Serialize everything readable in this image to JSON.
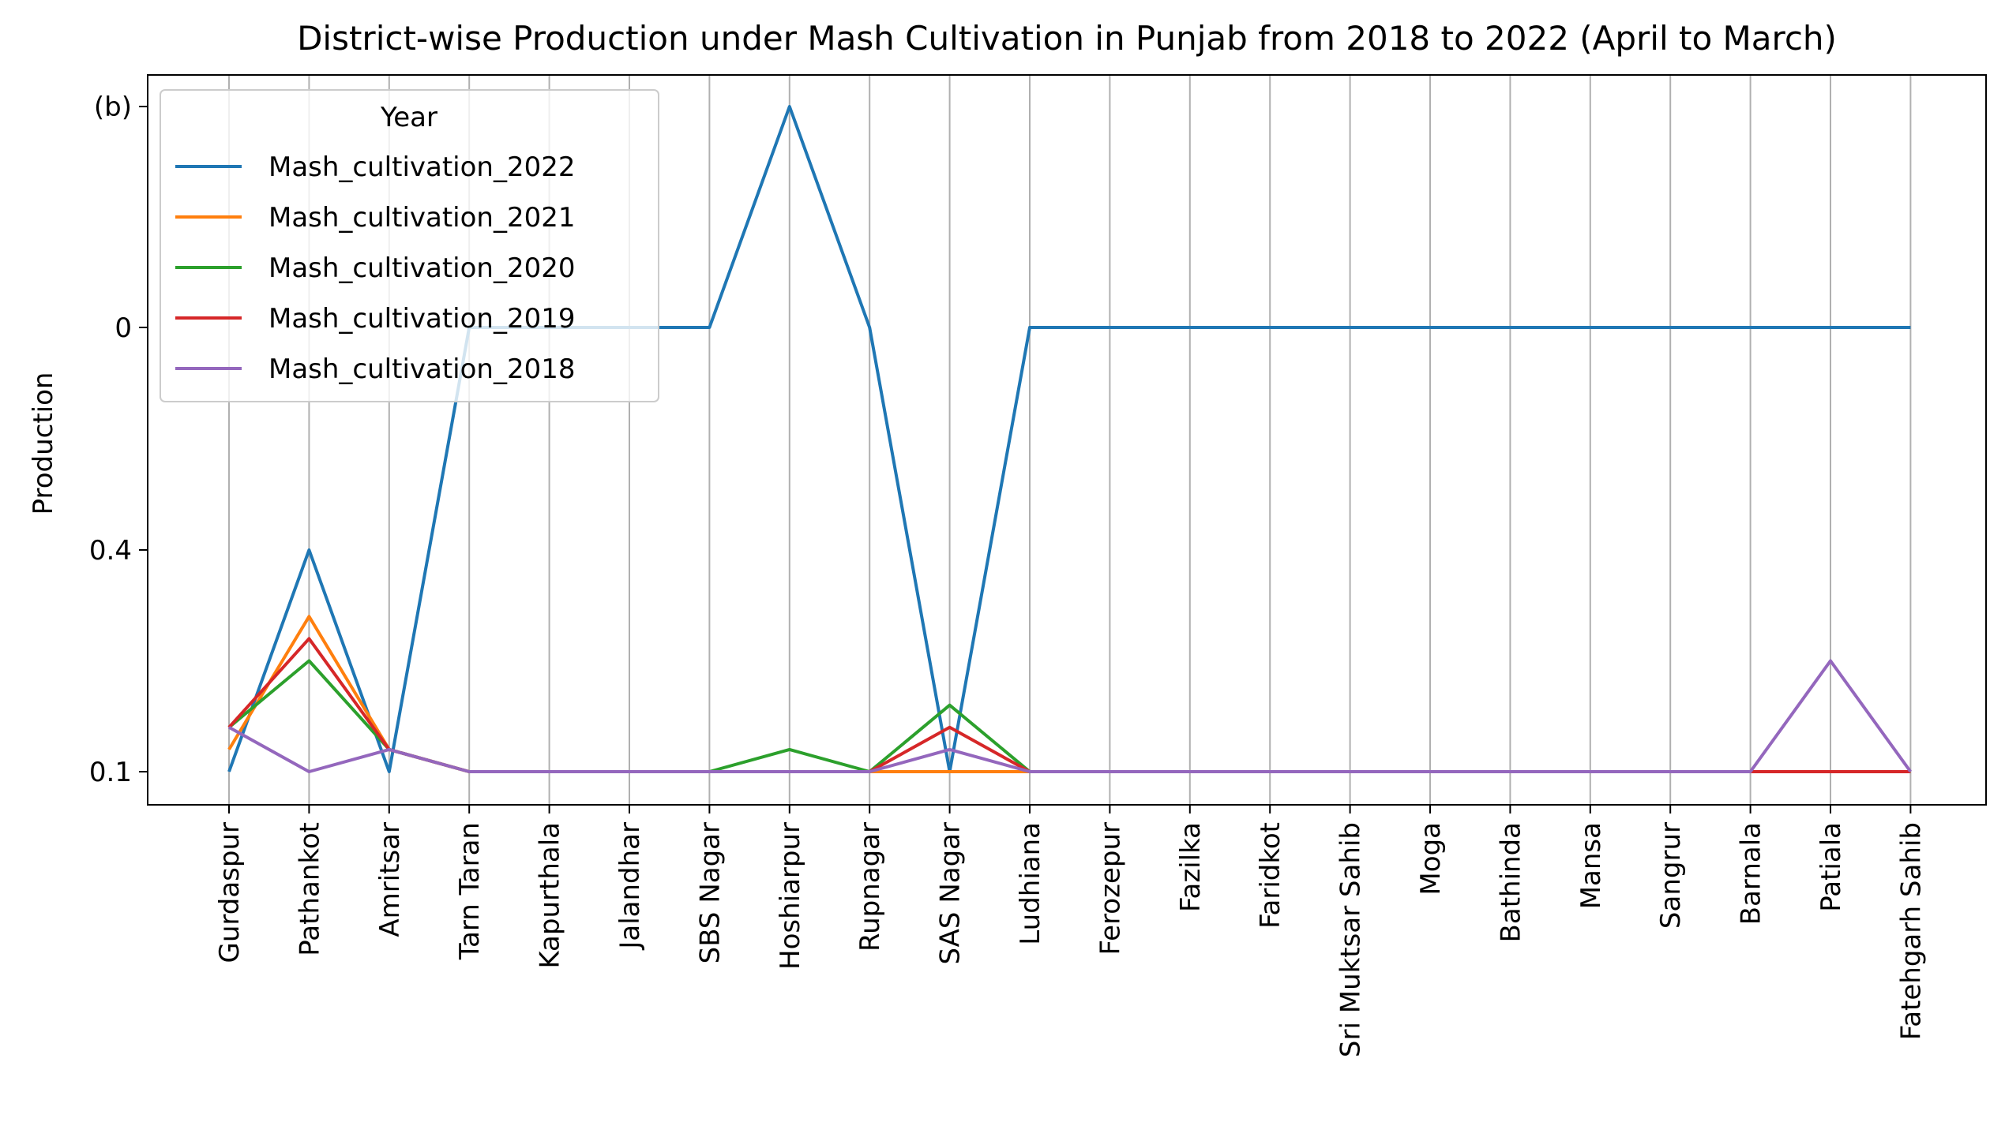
{
  "chart_data": {
    "type": "line",
    "title": "District-wise Production under Mash Cultivation in Punjab from 2018 to 2022 (April to March)",
    "xlabel": "",
    "ylabel": "Production",
    "categories": [
      "Gurdaspur",
      "Pathankot",
      "Amritsar",
      "Tarn Taran",
      "Kapurthala",
      "Jalandhar",
      "SBS Nagar",
      "Hoshiarpur",
      "Rupnagar",
      "SAS Nagar",
      "Ludhiana",
      "Ferozepur",
      "Fazilka",
      "Faridkot",
      "Sri Muktsar Sahib",
      "Moga",
      "Bathinda",
      "Mansa",
      "Sangrur",
      "Barnala",
      "Patiala",
      "Fatehgarh Sahib"
    ],
    "y_ticks": [
      "0.1",
      "0.4",
      "0",
      "(b)"
    ],
    "y_scale": "categorical (ticks in order from bottom to top)",
    "grid": "vertical lines at each category",
    "legend": {
      "title": "Year",
      "placement": "top-left"
    },
    "series": [
      {
        "name": "Mash_cultivation_2022",
        "color": "#1f77b4",
        "values": [
          0,
          1.0,
          0,
          3,
          3,
          3,
          3,
          4,
          3,
          0,
          3,
          3,
          3,
          3,
          3,
          3,
          3,
          3,
          3,
          3,
          3,
          3
        ]
      },
      {
        "name": "Mash_cultivation_2021",
        "color": "#ff7f0e",
        "values": [
          0.1,
          0.7,
          0.1,
          0,
          0,
          0,
          0,
          0,
          0,
          0,
          0,
          0,
          0,
          0,
          0,
          0,
          0,
          0,
          0,
          0,
          0,
          0
        ]
      },
      {
        "name": "Mash_cultivation_2020",
        "color": "#2ca02c",
        "values": [
          0.2,
          0.5,
          0.1,
          0,
          0,
          0,
          0,
          0.1,
          0,
          0.3,
          0,
          0,
          0,
          0,
          0,
          0,
          0,
          0,
          0,
          0,
          0,
          0
        ]
      },
      {
        "name": "Mash_cultivation_2019",
        "color": "#d62728",
        "values": [
          0.2,
          0.6,
          0.1,
          0,
          0,
          0,
          0,
          0,
          0,
          0.2,
          0,
          0,
          0,
          0,
          0,
          0,
          0,
          0,
          0,
          0,
          0,
          0
        ]
      },
      {
        "name": "Mash_cultivation_2018",
        "color": "#9467bd",
        "values": [
          0.2,
          0,
          0.1,
          0,
          0,
          0,
          0,
          0,
          0,
          0.1,
          0,
          0,
          0,
          0,
          0,
          0,
          0,
          0,
          0,
          0,
          0.5,
          0
        ]
      }
    ]
  }
}
